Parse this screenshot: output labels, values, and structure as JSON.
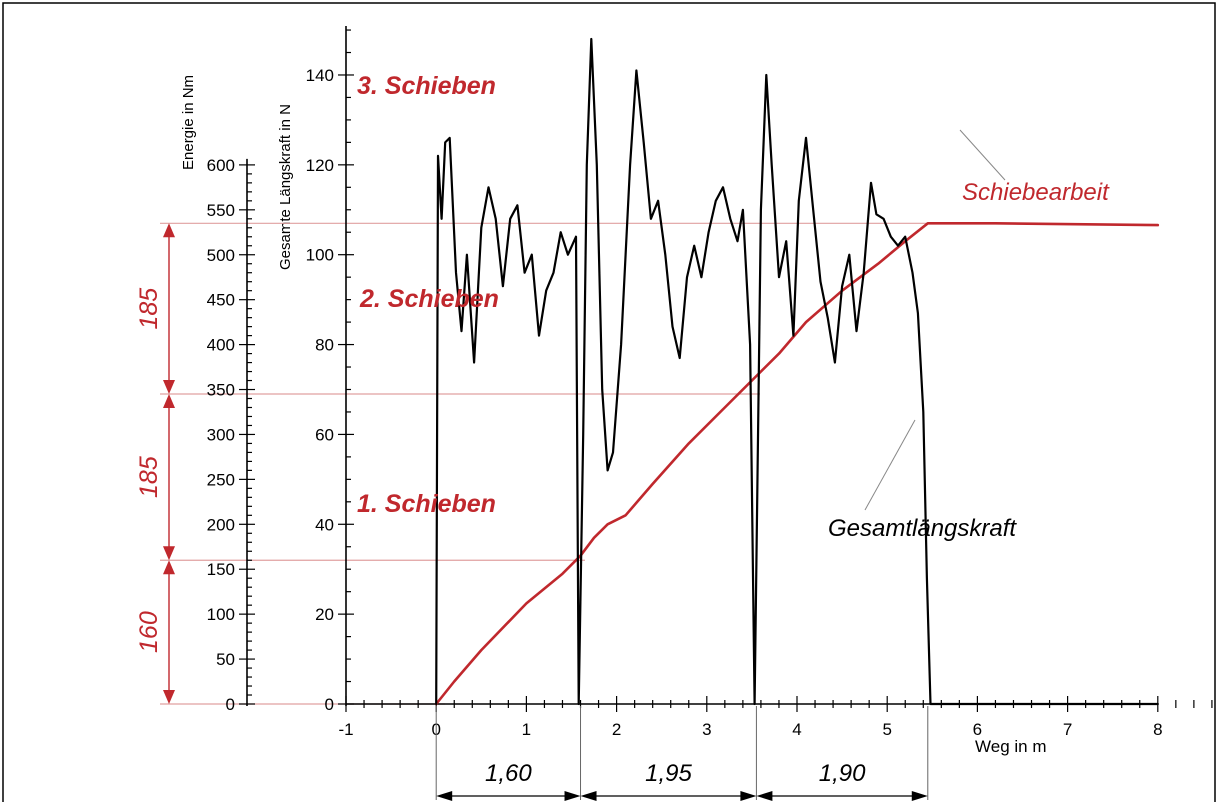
{
  "chart_data": {
    "type": "line",
    "xlabel": "Weg in m",
    "ylabel_left": "Energie in Nm",
    "ylabel_right": "Gesamte Längskraft in N",
    "x_range": [
      -1,
      8
    ],
    "x_ticks": [
      "-1",
      "0",
      "1",
      "2",
      "3",
      "4",
      "5",
      "6",
      "7",
      "8"
    ],
    "energy_range": [
      0,
      600
    ],
    "energy_ticks": [
      "0",
      "50",
      "100",
      "150",
      "200",
      "250",
      "300",
      "350",
      "400",
      "450",
      "500",
      "550",
      "600"
    ],
    "force_range": [
      0,
      150
    ],
    "force_ticks": [
      "0",
      "20",
      "40",
      "60",
      "80",
      "100",
      "120",
      "140"
    ],
    "series": [
      {
        "name": "Schiebearbeit",
        "axis": "energy",
        "color": "#c0282d",
        "points": [
          [
            0,
            0
          ],
          [
            0.2,
            25
          ],
          [
            0.5,
            60
          ],
          [
            1.0,
            112
          ],
          [
            1.4,
            145
          ],
          [
            1.6,
            165
          ],
          [
            1.75,
            185
          ],
          [
            1.9,
            200
          ],
          [
            2.1,
            210
          ],
          [
            2.4,
            245
          ],
          [
            2.8,
            290
          ],
          [
            3.2,
            330
          ],
          [
            3.55,
            365
          ],
          [
            3.8,
            390
          ],
          [
            4.1,
            425
          ],
          [
            4.5,
            460
          ],
          [
            4.9,
            490
          ],
          [
            5.2,
            515
          ],
          [
            5.45,
            535
          ],
          [
            6.2,
            535
          ],
          [
            8.0,
            533
          ]
        ]
      },
      {
        "name": "Gesamtlängskraft",
        "axis": "force",
        "color": "#000000",
        "points": [
          [
            0,
            0
          ],
          [
            0.02,
            122
          ],
          [
            0.06,
            108
          ],
          [
            0.1,
            125
          ],
          [
            0.15,
            126
          ],
          [
            0.22,
            96
          ],
          [
            0.28,
            83
          ],
          [
            0.34,
            100
          ],
          [
            0.42,
            76
          ],
          [
            0.5,
            106
          ],
          [
            0.58,
            115
          ],
          [
            0.66,
            108
          ],
          [
            0.74,
            93
          ],
          [
            0.82,
            108
          ],
          [
            0.9,
            111
          ],
          [
            0.98,
            96
          ],
          [
            1.06,
            100
          ],
          [
            1.14,
            82
          ],
          [
            1.22,
            92
          ],
          [
            1.3,
            96
          ],
          [
            1.38,
            105
          ],
          [
            1.46,
            100
          ],
          [
            1.55,
            104
          ],
          [
            1.58,
            0
          ],
          [
            1.63,
            60
          ],
          [
            1.67,
            120
          ],
          [
            1.72,
            148
          ],
          [
            1.78,
            120
          ],
          [
            1.84,
            70
          ],
          [
            1.9,
            52
          ],
          [
            1.96,
            56
          ],
          [
            2.05,
            80
          ],
          [
            2.15,
            120
          ],
          [
            2.22,
            141
          ],
          [
            2.3,
            125
          ],
          [
            2.38,
            108
          ],
          [
            2.46,
            112
          ],
          [
            2.54,
            100
          ],
          [
            2.62,
            84
          ],
          [
            2.7,
            77
          ],
          [
            2.78,
            95
          ],
          [
            2.86,
            102
          ],
          [
            2.94,
            95
          ],
          [
            3.02,
            105
          ],
          [
            3.1,
            112
          ],
          [
            3.18,
            115
          ],
          [
            3.26,
            108
          ],
          [
            3.34,
            103
          ],
          [
            3.4,
            110
          ],
          [
            3.48,
            80
          ],
          [
            3.53,
            0
          ],
          [
            3.6,
            110
          ],
          [
            3.66,
            140
          ],
          [
            3.72,
            120
          ],
          [
            3.8,
            95
          ],
          [
            3.88,
            103
          ],
          [
            3.96,
            82
          ],
          [
            4.02,
            112
          ],
          [
            4.1,
            126
          ],
          [
            4.18,
            110
          ],
          [
            4.26,
            94
          ],
          [
            4.34,
            86
          ],
          [
            4.42,
            76
          ],
          [
            4.5,
            93
          ],
          [
            4.58,
            100
          ],
          [
            4.66,
            83
          ],
          [
            4.74,
            96
          ],
          [
            4.82,
            116
          ],
          [
            4.88,
            109
          ],
          [
            4.96,
            108
          ],
          [
            5.04,
            104
          ],
          [
            5.12,
            102
          ],
          [
            5.2,
            104
          ],
          [
            5.28,
            96
          ],
          [
            5.34,
            87
          ],
          [
            5.4,
            65
          ],
          [
            5.44,
            28
          ],
          [
            5.48,
            0
          ],
          [
            6.0,
            0
          ],
          [
            7.0,
            0
          ],
          [
            8.0,
            0
          ]
        ]
      }
    ]
  },
  "annotations": {
    "push_1": "1. Schieben",
    "push_2": "2. Schieben",
    "push_3": "3. Schieben",
    "energy_line_label": "Schiebearbeit",
    "force_line_label": "Gesamtlängskraft",
    "push_levels": [
      160,
      345,
      535
    ],
    "energy_segments": [
      {
        "label": "160",
        "from": 0,
        "to": 160
      },
      {
        "label": "185",
        "from": 160,
        "to": 345
      },
      {
        "label": "185",
        "from": 345,
        "to": 535
      }
    ],
    "distance_segments": [
      {
        "label": "1,60",
        "from": 0,
        "to": 1.6
      },
      {
        "label": "1,95",
        "from": 1.6,
        "to": 3.55
      },
      {
        "label": "1,90",
        "from": 3.55,
        "to": 5.45
      }
    ]
  },
  "colors": {
    "accent": "#c0282d",
    "guide": "#e0a0a0",
    "ink": "#000000"
  }
}
